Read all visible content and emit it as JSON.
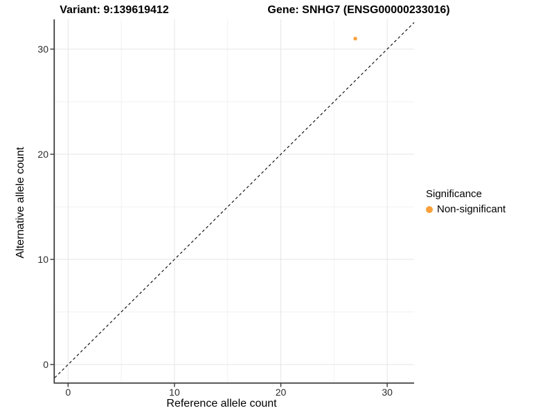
{
  "titles": {
    "variant": "Variant: 9:139619412",
    "gene": "Gene: SNHG7 (ENSG00000233016)"
  },
  "chart_data": {
    "type": "scatter",
    "title_left": "Variant: 9:139619412",
    "title_right": "Gene: SNHG7 (ENSG00000233016)",
    "xlabel": "Reference allele count",
    "ylabel": "Alternative allele count",
    "xlim": [
      -1.26,
      32.53
    ],
    "ylim": [
      -1.71,
      32.83
    ],
    "x_ticks": [
      0,
      10,
      20,
      30
    ],
    "y_ticks": [
      0,
      10,
      20,
      30
    ],
    "x_minor_ticks": [
      5,
      15,
      25
    ],
    "y_minor_ticks": [
      5,
      15,
      25
    ],
    "grid": true,
    "identity_line": {
      "slope": 1,
      "intercept": 0,
      "style": "dashed",
      "color": "#000000"
    },
    "series": [
      {
        "name": "Non-significant",
        "color": "#F9A03C",
        "points": [
          {
            "x": 27,
            "y": 31
          }
        ]
      }
    ],
    "legend": {
      "title": "Significance",
      "position": "right",
      "items": [
        {
          "label": "Non-significant",
          "color": "#F9A03C"
        }
      ]
    },
    "colors": {
      "axis_line": "#333333",
      "tick_label": "#2b2b2b",
      "grid_major": "#e5e5e5",
      "grid_minor": "#f2f2f2",
      "background": "#ffffff"
    }
  }
}
